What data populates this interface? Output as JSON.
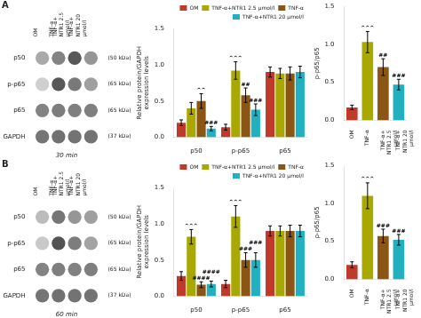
{
  "chart_data": [
    {
      "type": "heatmap",
      "title": "A",
      "subtitle": "30 min",
      "categories": [
        "OM",
        "TNF-α",
        "TNF-α+\nNTR1 2.5\nμmol/l",
        "TNF-α+\nNTR1 20\nμmol/l"
      ],
      "y_categories": [
        "p50",
        "p-p65",
        "p65",
        "GAPDH"
      ],
      "y2_categories": [
        "(50 kDa)",
        "(65 kDa)",
        "(65 kDa)",
        "(37 kDa)"
      ],
      "cells": [
        [
          0.45,
          0.65,
          0.88,
          0.55
        ],
        [
          0.25,
          0.88,
          0.7,
          0.5
        ],
        [
          0.65,
          0.68,
          0.67,
          0.67
        ],
        [
          0.72,
          0.74,
          0.73,
          0.73
        ]
      ]
    },
    {
      "type": "bar",
      "categories": [
        "p50",
        "p-p65",
        "p65"
      ],
      "series": [
        {
          "name": "OM",
          "color": "#c0392b",
          "values": [
            0.2,
            0.14,
            0.9
          ],
          "errors": [
            0.04,
            0.04,
            0.07
          ]
        },
        {
          "name": "TNF-α+NTR1 2.5 μmol/l",
          "color": "#a8a800",
          "values": [
            0.4,
            0.92,
            0.88
          ],
          "errors": [
            0.08,
            0.12,
            0.07
          ]
        },
        {
          "name": "TNF-α",
          "color": "#8B5513",
          "values": [
            0.5,
            0.58,
            0.88
          ],
          "errors": [
            0.1,
            0.1,
            0.09
          ]
        },
        {
          "name": "TNF-α+NTR1 20 μmol/l",
          "color": "#20b0c0",
          "values": [
            0.12,
            0.38,
            0.9
          ],
          "errors": [
            0.03,
            0.08,
            0.08
          ]
        }
      ],
      "ylabel": "Relative protein/GAPDH\nexpression levels",
      "ylim": [
        0,
        1.5
      ],
      "yticks": [
        {
          "value": 0,
          "label": "0.0"
        },
        0.5,
        {
          "value": 1,
          "label": "1.0"
        },
        1.5
      ],
      "grid": false,
      "legend": "upper right",
      "annotations": [
        {
          "series": "TNF-α",
          "x": "p50",
          "text": "^^"
        },
        {
          "series": "TNF-α+NTR1 20 μmol/l",
          "x": "p50",
          "text": "###"
        },
        {
          "series": "TNF-α+NTR1 2.5 μmol/l",
          "x": "p-p65",
          "text": "^^^"
        },
        {
          "series": "TNF-α",
          "x": "p-p65",
          "text": "##"
        },
        {
          "series": "TNF-α+NTR1 20 μmol/l",
          "x": "p-p65",
          "text": "###"
        }
      ]
    },
    {
      "type": "bar",
      "categories": [
        "OM",
        "TNF-α",
        "TNF-α+\nNTR1 2.5\nμmol/l",
        "TNF-α+\nNTR1 20\nμmol/l"
      ],
      "values": [
        0.17,
        1.03,
        0.7,
        0.47
      ],
      "errors": [
        0.03,
        0.14,
        0.11,
        0.07
      ],
      "colors": [
        "#c0392b",
        "#a8a800",
        "#8B5513",
        "#20b0c0"
      ],
      "ylabel": "p-p65/p65",
      "ylim": [
        0,
        1.5
      ],
      "yticks": [
        {
          "value": 0,
          "label": "0.0"
        },
        0.5,
        {
          "value": 1,
          "label": "1.0"
        },
        1.5
      ],
      "grid": false,
      "annotations": [
        {
          "x": "TNF-α",
          "text": "^^^"
        },
        {
          "x": "TNF-α+\nNTR1 2.5\nμmol/l",
          "text": "##"
        },
        {
          "x": "TNF-α+\nNTR1 20\nμmol/l",
          "text": "###"
        }
      ]
    },
    {
      "type": "heatmap",
      "title": "B",
      "subtitle": "60 min",
      "categories": [
        "OM",
        "TNF-α",
        "TNF-α+\nNTR1 2.5\nμmol/l",
        "TNF-α+\nNTR1 20\nμmol/l"
      ],
      "y_categories": [
        "p50",
        "p-p65",
        "p65",
        "GAPDH"
      ],
      "y2_categories": [
        "(50 kDa)",
        "(65 kDa)",
        "(65 kDa)",
        "(37 kDa)"
      ],
      "cells": [
        [
          0.35,
          0.72,
          0.55,
          0.5
        ],
        [
          0.28,
          0.9,
          0.68,
          0.48
        ],
        [
          0.65,
          0.67,
          0.66,
          0.67
        ],
        [
          0.72,
          0.74,
          0.73,
          0.73
        ]
      ]
    },
    {
      "type": "bar",
      "categories": [
        "p50",
        "p-p65",
        "p65"
      ],
      "series": [
        {
          "name": "OM",
          "color": "#c0392b",
          "values": [
            0.28,
            0.17,
            0.9
          ],
          "errors": [
            0.06,
            0.05,
            0.07
          ]
        },
        {
          "name": "TNF-α+NTR1 2.5 μmol/l",
          "color": "#a8a800",
          "values": [
            0.82,
            1.1,
            0.9
          ],
          "errors": [
            0.1,
            0.15,
            0.07
          ]
        },
        {
          "name": "TNF-α",
          "color": "#8B5513",
          "values": [
            0.16,
            0.5,
            0.9
          ],
          "errors": [
            0.04,
            0.1,
            0.08
          ]
        },
        {
          "name": "TNF-α+NTR1 20 μmol/l",
          "color": "#20b0c0",
          "values": [
            0.17,
            0.5,
            0.9
          ],
          "errors": [
            0.04,
            0.1,
            0.08
          ]
        }
      ],
      "ylabel": "Relative protein/GAPDH\nexpression levels",
      "ylim": [
        0,
        1.5
      ],
      "yticks": [
        {
          "value": 0,
          "label": "0.0"
        },
        0.5,
        {
          "value": 1,
          "label": "1.0"
        },
        1.5
      ],
      "grid": false,
      "legend": "upper right",
      "annotations": [
        {
          "series": "TNF-α+NTR1 2.5 μmol/l",
          "x": "p50",
          "text": "^^^"
        },
        {
          "series": "TNF-α",
          "x": "p50",
          "text": "####"
        },
        {
          "series": "TNF-α+NTR1 20 μmol/l",
          "x": "p50",
          "text": "####"
        },
        {
          "series": "TNF-α+NTR1 2.5 μmol/l",
          "x": "p-p65",
          "text": "^^^"
        },
        {
          "series": "TNF-α",
          "x": "p-p65",
          "text": "###"
        },
        {
          "series": "TNF-α+NTR1 20 μmol/l",
          "x": "p-p65",
          "text": "###"
        }
      ]
    },
    {
      "type": "bar",
      "categories": [
        "OM",
        "TNF-α",
        "TNF-α+\nNTR1 2.5\nμmol/l",
        "TNF-α+\nNTR1 20\nμmol/l"
      ],
      "values": [
        0.19,
        1.1,
        0.57,
        0.52
      ],
      "errors": [
        0.04,
        0.17,
        0.09,
        0.07
      ],
      "colors": [
        "#c0392b",
        "#a8a800",
        "#8B5513",
        "#20b0c0"
      ],
      "ylabel": "p-p65/p65",
      "ylim": [
        0,
        1.5
      ],
      "yticks": [
        {
          "value": 0,
          "label": "0.0"
        },
        0.5,
        {
          "value": 1,
          "label": "1.0"
        },
        1.5
      ],
      "grid": false,
      "annotations": [
        {
          "x": "TNF-α",
          "text": "^^^"
        },
        {
          "x": "TNF-α+\nNTR1 2.5\nμmol/l",
          "text": "###"
        },
        {
          "x": "TNF-α+\nNTR1 20\nμmol/l",
          "text": "###"
        }
      ]
    }
  ]
}
